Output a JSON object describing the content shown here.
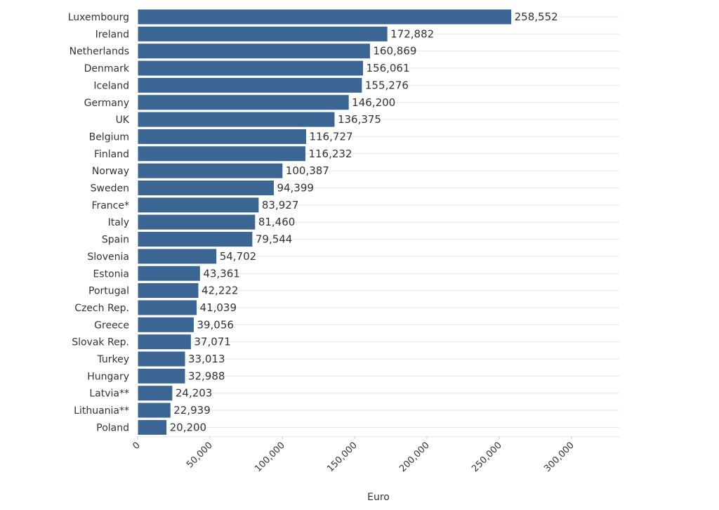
{
  "chart_data": {
    "type": "bar",
    "orientation": "horizontal",
    "categories": [
      "Luxembourg",
      "Ireland",
      "Netherlands",
      "Denmark",
      "Iceland",
      "Germany",
      "UK",
      "Belgium",
      "Finland",
      "Norway",
      "Sweden",
      "France*",
      "Italy",
      "Spain",
      "Slovenia",
      "Estonia",
      "Portugal",
      "Czech Rep.",
      "Greece",
      "Slovak Rep.",
      "Turkey",
      "Hungary",
      "Latvia**",
      "Lithuania**",
      "Poland"
    ],
    "values": [
      258552,
      172882,
      160869,
      156061,
      155276,
      146200,
      136375,
      116727,
      116232,
      100387,
      94399,
      83927,
      81460,
      79544,
      54702,
      43361,
      42222,
      41039,
      39056,
      37071,
      33013,
      32988,
      24203,
      22939,
      20200
    ],
    "value_labels": [
      "258,552",
      "172,882",
      "160,869",
      "156,061",
      "155,276",
      "146,200",
      "136,375",
      "116,727",
      "116,232",
      "100,387",
      "94,399",
      "83,927",
      "81,460",
      "79,544",
      "54,702",
      "43,361",
      "42,222",
      "41,039",
      "39,056",
      "37,071",
      "33,013",
      "32,988",
      "24,203",
      "22,939",
      "20,200"
    ],
    "title": "",
    "xlabel": "Euro",
    "ylabel": "",
    "xlim": [
      0,
      333000
    ],
    "x_ticks": [
      0,
      50000,
      100000,
      150000,
      200000,
      250000,
      300000
    ],
    "x_tick_labels": [
      "0",
      "50,000",
      "100,000",
      "150,000",
      "200,000",
      "250,000",
      "300,000"
    ],
    "grid": true,
    "bar_color": "#3b6592"
  }
}
